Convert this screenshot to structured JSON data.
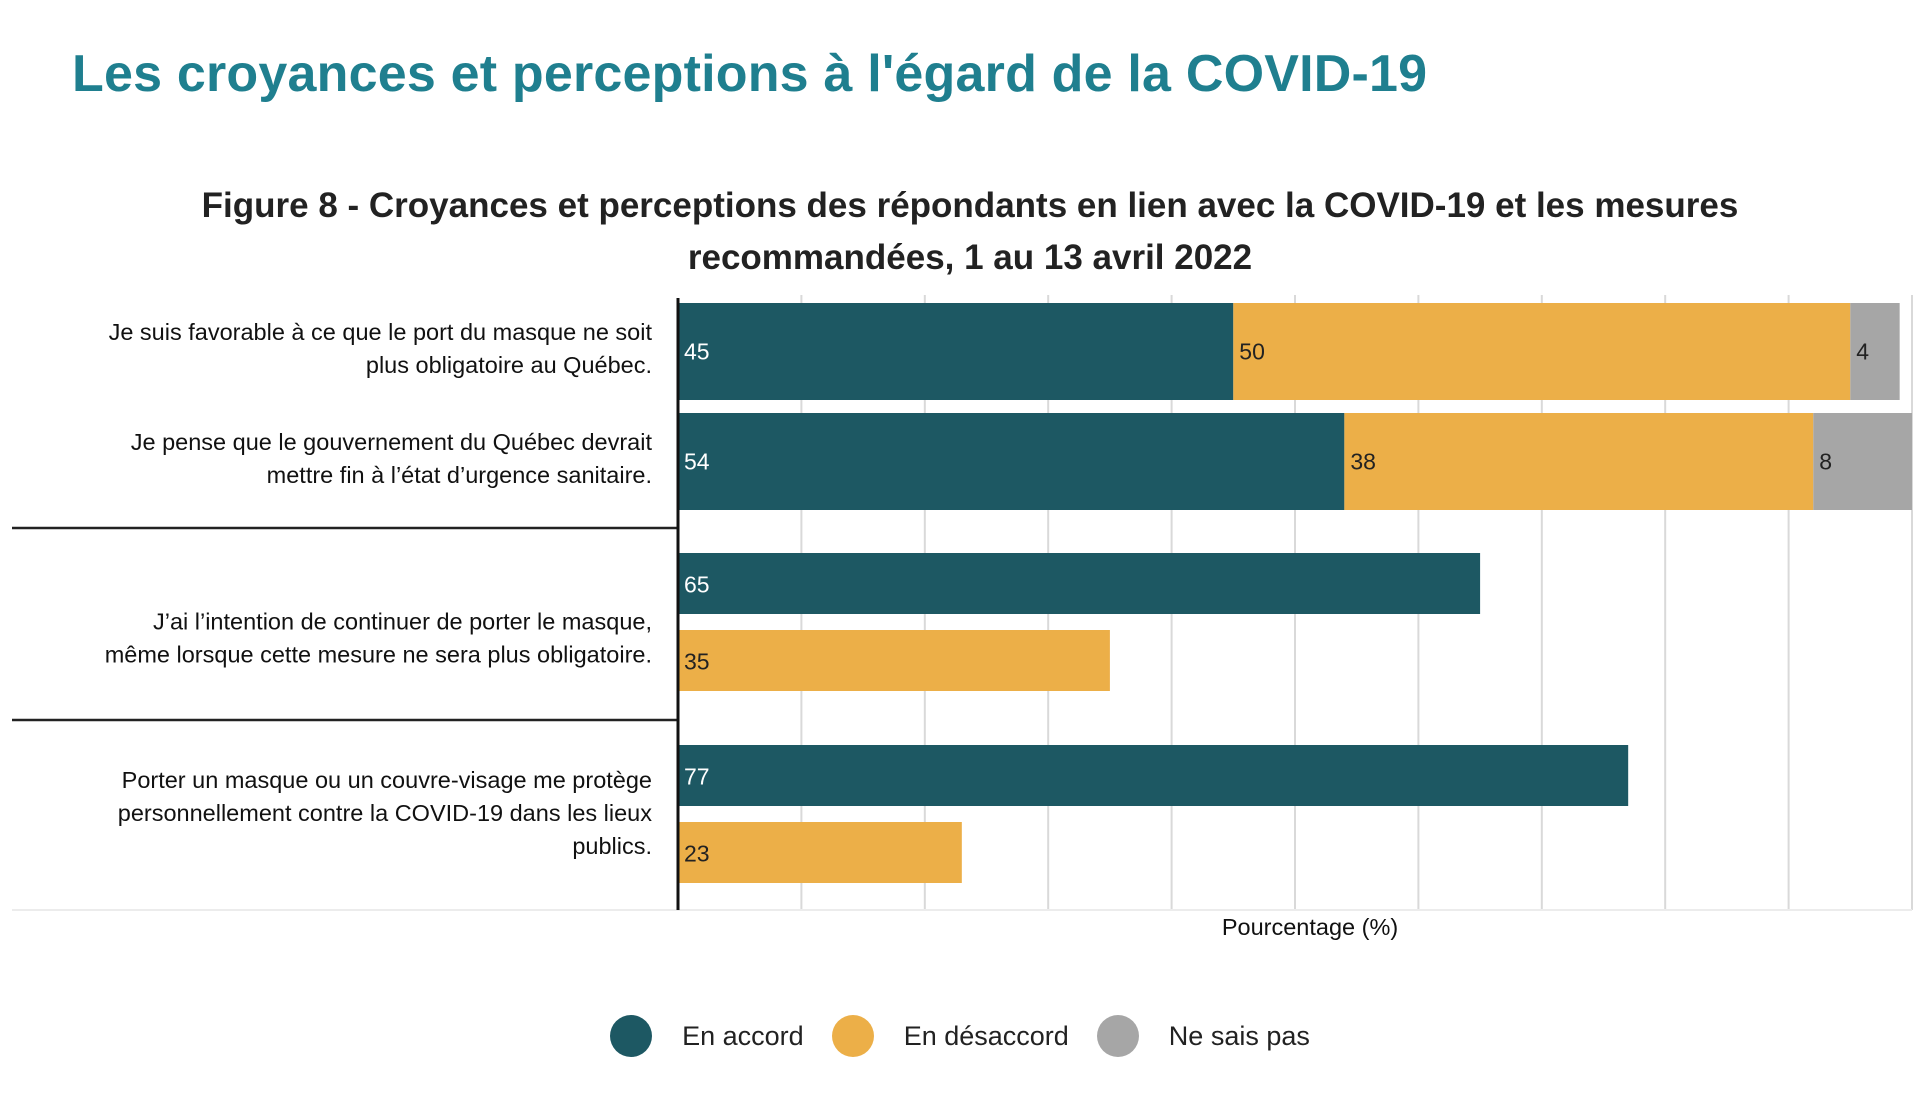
{
  "page": {
    "heading": "Les croyances et perceptions à l'égard de la COVID-19"
  },
  "chart_data": {
    "type": "bar",
    "orientation": "horizontal",
    "title": "Figure 8 - Croyances et perceptions des répondants en lien avec la COVID-19 et les mesures recommandées, 1 au 13 avril 2022",
    "title_lines": [
      "Figure 8 - Croyances et perceptions des répondants en lien avec la COVID-19 et les mesures",
      "recommandées, 1 au 13 avril 2022"
    ],
    "xlabel": "Pourcentage (%)",
    "ylabel": "",
    "xlim": [
      0,
      100
    ],
    "grid": true,
    "legend_placement": "bottom",
    "series": [
      {
        "name": "En accord",
        "color": "#1d5863"
      },
      {
        "name": "En désaccord",
        "color": "#ecaf48"
      },
      {
        "name": "Ne sais pas",
        "color": "#a6a6a6"
      }
    ],
    "groups": [
      {
        "layout": "stacked",
        "items": [
          {
            "label_lines": [
              "Je suis favorable à ce que le port du masque ne soit",
              "plus obligatoire au Québec."
            ],
            "values": [
              45,
              50,
              4
            ]
          },
          {
            "label_lines": [
              "Je pense que le gouvernement du Québec devrait",
              "mettre fin à l’état d’urgence sanitaire."
            ],
            "values": [
              54,
              38,
              8
            ]
          }
        ]
      },
      {
        "layout": "grouped",
        "label_lines": [
          "J’ai l’intention de continuer de porter le masque,",
          "même lorsque cette mesure ne sera plus obligatoire."
        ],
        "values": [
          65,
          35
        ]
      },
      {
        "layout": "grouped",
        "label_lines": [
          "Porter un masque ou un couvre-visage me protège",
          "personnellement contre la COVID-19 dans les lieux",
          "publics."
        ],
        "values": [
          77,
          23
        ]
      }
    ]
  }
}
